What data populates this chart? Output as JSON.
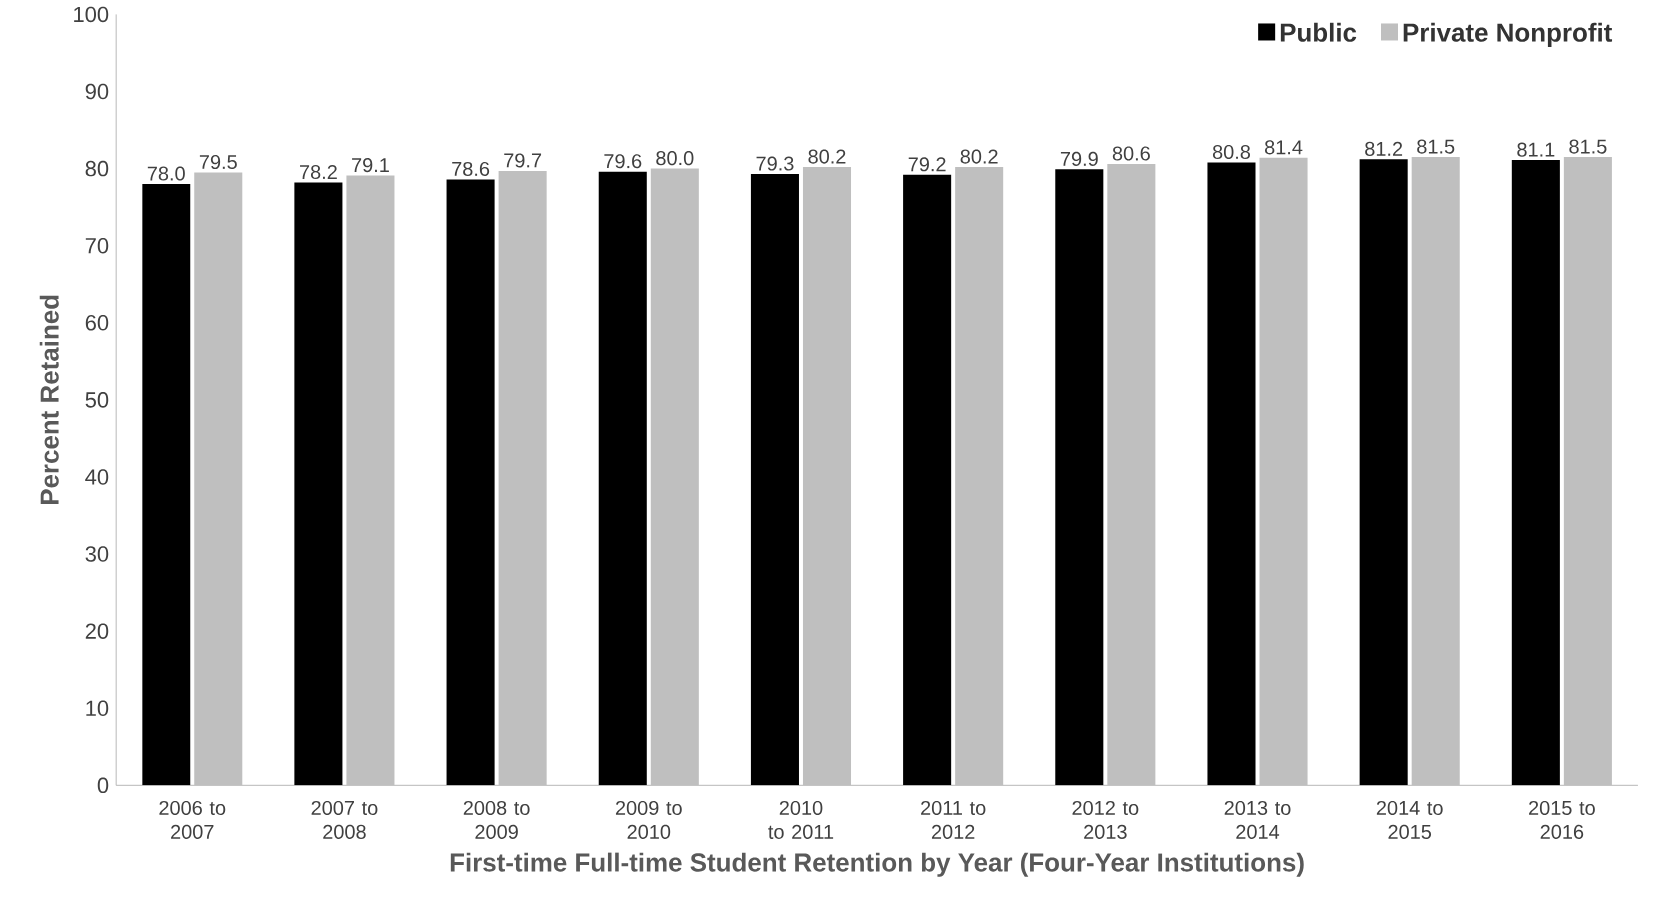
{
  "chart_data": {
    "type": "bar",
    "xlabel": "First-time Full-time Student Retention by Year (Four-Year Institutions)",
    "ylabel": "Percent Retained",
    "categories": [
      "2006 to 2007",
      "2007 to 2008",
      "2008 to 2009",
      "2009 to 2010",
      "2010 to 2011",
      "2011 to 2012",
      "2012 to 2013",
      "2013 to 2014",
      "2014 to 2015",
      "2015 to 2016"
    ],
    "series": [
      {
        "name": "Public",
        "color": "#000000",
        "values": [
          78.0,
          78.2,
          78.6,
          79.6,
          79.3,
          79.2,
          79.9,
          80.8,
          81.2,
          81.1
        ],
        "value_labels": [
          "78.0",
          "78.2",
          "78.6",
          "79.6",
          "79.3",
          "79.2",
          "79.9",
          "80.8",
          "81.2",
          "81.1"
        ]
      },
      {
        "name": "Private Nonprofit",
        "color": "#bfbfbf",
        "values": [
          79.5,
          79.1,
          79.7,
          80.0,
          80.2,
          80.2,
          80.6,
          81.4,
          81.5,
          81.5
        ],
        "value_labels": [
          "79.5",
          "79.1",
          "79.7",
          "80.0",
          "80.2",
          "80.2",
          "80.6",
          "81.4",
          "81.5",
          "81.5"
        ]
      }
    ],
    "ylim": [
      0,
      100
    ],
    "yticks": [
      0,
      10,
      20,
      30,
      40,
      50,
      60,
      70,
      80,
      90,
      100
    ],
    "grid": false,
    "legend": "top right"
  }
}
